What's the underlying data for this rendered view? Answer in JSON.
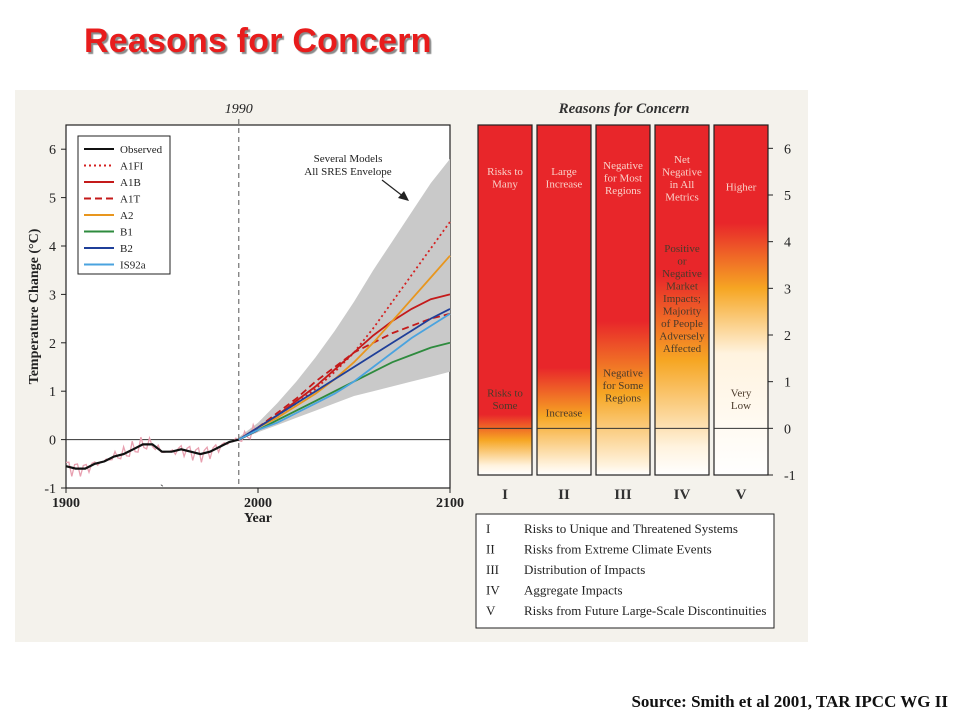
{
  "slide": {
    "title": "Reasons for Concern",
    "source": "Source: Smith et al 2001, TAR IPCC WG II"
  },
  "chart_data": [
    {
      "type": "line",
      "top_label": "1990",
      "xlabel": "Year",
      "ylabel": "Temperature Change (°C)",
      "xlim": [
        1900,
        2100
      ],
      "ylim": [
        -1,
        6.5
      ],
      "xticks": [
        1900,
        2000,
        2100
      ],
      "yticks": [
        -1,
        0,
        1,
        2,
        3,
        4,
        5,
        6
      ],
      "vline_x": 1990,
      "annotation": "Several Models All SRES Envelope",
      "envelope": {
        "x": [
          1990,
          2000,
          2010,
          2020,
          2030,
          2040,
          2050,
          2060,
          2070,
          2080,
          2090,
          2100
        ],
        "upper": [
          0.05,
          0.35,
          0.75,
          1.2,
          1.7,
          2.25,
          2.85,
          3.5,
          4.1,
          4.7,
          5.3,
          5.8
        ],
        "lower": [
          0.0,
          0.15,
          0.3,
          0.45,
          0.6,
          0.75,
          0.9,
          1.0,
          1.1,
          1.2,
          1.3,
          1.4
        ]
      },
      "series": [
        {
          "name": "Observed",
          "color": "#111111",
          "dash": "solid",
          "x": [
            1900,
            1905,
            1910,
            1915,
            1920,
            1925,
            1930,
            1935,
            1940,
            1945,
            1950,
            1955,
            1960,
            1965,
            1970,
            1975,
            1980,
            1985,
            1990,
            1995,
            2000
          ],
          "y": [
            -0.55,
            -0.6,
            -0.6,
            -0.5,
            -0.45,
            -0.35,
            -0.3,
            -0.2,
            -0.1,
            -0.1,
            -0.25,
            -0.25,
            -0.2,
            -0.25,
            -0.3,
            -0.25,
            -0.15,
            -0.05,
            0.0,
            0.1,
            0.2
          ]
        },
        {
          "name": "A1FI",
          "color": "#d42020",
          "dash": "dotted",
          "x": [
            1990,
            2000,
            2010,
            2020,
            2030,
            2040,
            2050,
            2060,
            2070,
            2080,
            2090,
            2100
          ],
          "y": [
            0.0,
            0.25,
            0.5,
            0.75,
            1.05,
            1.4,
            1.8,
            2.3,
            2.85,
            3.4,
            3.95,
            4.5
          ]
        },
        {
          "name": "A1B",
          "color": "#c41a1a",
          "dash": "solid",
          "x": [
            1990,
            2000,
            2010,
            2020,
            2030,
            2040,
            2050,
            2060,
            2070,
            2080,
            2090,
            2100
          ],
          "y": [
            0.0,
            0.25,
            0.5,
            0.8,
            1.1,
            1.45,
            1.8,
            2.15,
            2.45,
            2.7,
            2.9,
            3.0
          ]
        },
        {
          "name": "A1T",
          "color": "#c41a1a",
          "dash": "dashed",
          "x": [
            1990,
            2000,
            2010,
            2020,
            2030,
            2040,
            2050,
            2060,
            2070,
            2080,
            2090,
            2100
          ],
          "y": [
            0.0,
            0.25,
            0.55,
            0.85,
            1.2,
            1.5,
            1.8,
            2.0,
            2.2,
            2.35,
            2.5,
            2.6
          ]
        },
        {
          "name": "A2",
          "color": "#e8961e",
          "dash": "solid",
          "x": [
            1990,
            2000,
            2010,
            2020,
            2030,
            2040,
            2050,
            2060,
            2070,
            2080,
            2090,
            2100
          ],
          "y": [
            0.0,
            0.25,
            0.45,
            0.7,
            0.95,
            1.25,
            1.6,
            2.0,
            2.45,
            2.9,
            3.35,
            3.8
          ]
        },
        {
          "name": "B1",
          "color": "#2e8b3e",
          "dash": "solid",
          "x": [
            1990,
            2000,
            2010,
            2020,
            2030,
            2040,
            2050,
            2060,
            2070,
            2080,
            2090,
            2100
          ],
          "y": [
            0.0,
            0.2,
            0.4,
            0.6,
            0.8,
            1.0,
            1.2,
            1.4,
            1.6,
            1.75,
            1.9,
            2.0
          ]
        },
        {
          "name": "B2",
          "color": "#1f3f99",
          "dash": "solid",
          "x": [
            1990,
            2000,
            2010,
            2020,
            2030,
            2040,
            2050,
            2060,
            2070,
            2080,
            2090,
            2100
          ],
          "y": [
            0.0,
            0.25,
            0.5,
            0.75,
            1.0,
            1.25,
            1.5,
            1.75,
            2.0,
            2.25,
            2.5,
            2.7
          ]
        },
        {
          "name": "IS92a",
          "color": "#4aa3df",
          "dash": "solid",
          "x": [
            1990,
            2000,
            2010,
            2020,
            2030,
            2040,
            2050,
            2060,
            2070,
            2080,
            2090,
            2100
          ],
          "y": [
            0.0,
            0.2,
            0.35,
            0.55,
            0.75,
            0.95,
            1.2,
            1.5,
            1.8,
            2.1,
            2.35,
            2.6
          ]
        }
      ],
      "legend_labels": [
        "Observed",
        "A1FI",
        "A1B",
        "A1T",
        "A2",
        "B1",
        "B2",
        "IS92a"
      ]
    },
    {
      "type": "heatmap",
      "title": "Reasons for Concern",
      "ylim": [
        -1,
        6.5
      ],
      "yticks": [
        -1,
        0,
        1,
        2,
        3,
        4,
        5,
        6
      ],
      "columns": [
        {
          "roman": "I",
          "fade_top": 0.3,
          "fade_bottom": -0.8,
          "labels": [
            {
              "text": [
                "Risks to",
                "Many"
              ],
              "y": 5.3
            },
            {
              "text": [
                "Risks to",
                "Some"
              ],
              "y": 0.55
            }
          ]
        },
        {
          "roman": "II",
          "fade_top": 1.3,
          "fade_bottom": -0.8,
          "labels": [
            {
              "text": [
                "Large",
                "Increase"
              ],
              "y": 5.3
            },
            {
              "text": [
                "Increase"
              ],
              "y": 0.25
            }
          ]
        },
        {
          "roman": "III",
          "fade_top": 2.3,
          "fade_bottom": -0.8,
          "labels": [
            {
              "text": [
                "Negative",
                "for Most",
                "Regions"
              ],
              "y": 5.3
            },
            {
              "text": [
                "Negative",
                "for Some",
                "Regions"
              ],
              "y": 0.85
            }
          ]
        },
        {
          "roman": "IV",
          "fade_top": 3.3,
          "fade_bottom": -0.4,
          "labels": [
            {
              "text": [
                "Net",
                "Negative",
                "in All",
                "Metrics"
              ],
              "y": 5.3
            },
            {
              "text": [
                "Positive",
                "or",
                "Negative",
                "Market",
                "Impacts;",
                "Majority",
                "of People",
                "Adversely",
                "Affected"
              ],
              "y": 2.75
            }
          ]
        },
        {
          "roman": "V",
          "fade_top": 4.4,
          "fade_bottom": 1.6,
          "labels": [
            {
              "text": [
                "Higher"
              ],
              "y": 5.1
            },
            {
              "text": [
                "Very",
                "Low"
              ],
              "y": 0.55
            }
          ]
        }
      ],
      "key": [
        {
          "roman": "I",
          "text": "Risks to Unique and Threatened Systems"
        },
        {
          "roman": "II",
          "text": "Risks from Extreme Climate Events"
        },
        {
          "roman": "III",
          "text": "Distribution of Impacts"
        },
        {
          "roman": "IV",
          "text": "Aggregate Impacts"
        },
        {
          "roman": "V",
          "text": "Risks from Future Large-Scale Discontinuities"
        }
      ]
    }
  ]
}
